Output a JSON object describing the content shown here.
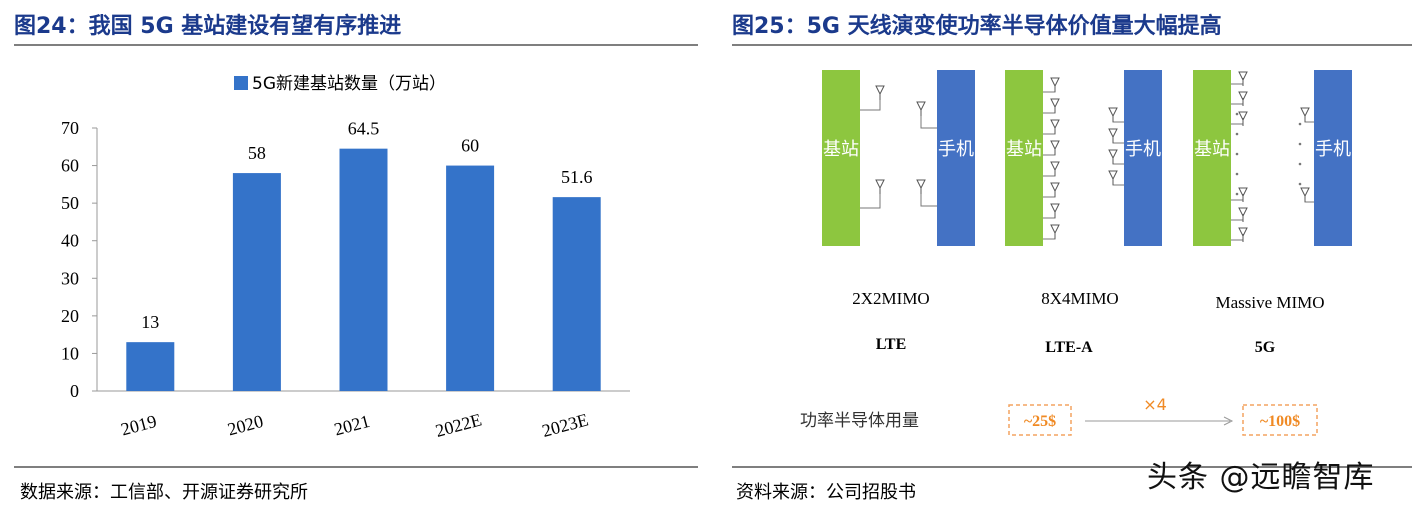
{
  "left_figure": {
    "title": "图24：我国 5G 基站建设有望有序推进",
    "source": "数据来源：工信部、开源证券研究所"
  },
  "right_figure": {
    "title": "图25：5G 天线演变使功率半导体价值量大幅提高",
    "source": "资料来源：公司招股书",
    "configs": [
      {
        "mimo": "2X2MIMO",
        "tech": "LTE"
      },
      {
        "mimo": "8X4MIMO",
        "tech": "LTE-A"
      },
      {
        "mimo": "Massive MIMO",
        "tech": "5G"
      }
    ],
    "base_station_label": "基站",
    "phone_label": "手机",
    "power_label": "功率半导体用量",
    "value_from": "~25$",
    "value_to": "~100$",
    "multiplier": "×4",
    "colors": {
      "base_station": "#8dc63f",
      "phone": "#4472c4",
      "value_border": "#f4a460"
    }
  },
  "watermark": "头条 @远瞻智库",
  "chart_data": {
    "type": "bar",
    "categories": [
      "2019",
      "2020",
      "2021",
      "2022E",
      "2023E"
    ],
    "series": [
      {
        "name": "5G新建基站数量（万站）",
        "values": [
          13,
          58,
          64.5,
          60,
          51.6
        ]
      }
    ],
    "data_labels": [
      "13",
      "58",
      "64.5",
      "60",
      "51.6"
    ],
    "ylim": [
      0,
      70
    ],
    "yticks": [
      0,
      10,
      20,
      30,
      40,
      50,
      60,
      70
    ],
    "legend": "top",
    "grid": false,
    "bar_color": "#3473c9"
  }
}
